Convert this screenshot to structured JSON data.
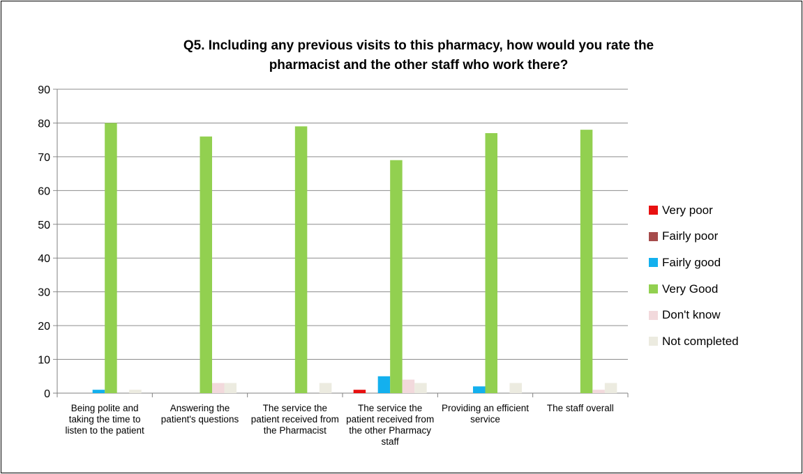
{
  "chart_data": {
    "type": "bar",
    "title": "Q5.  Including any previous visits to this pharmacy, how would you rate the\npharmacist  and the other staff who work there?",
    "categories": [
      "Being polite and taking the time to listen to the patient",
      "Answering the patient's questions",
      "The service the patient received from the Pharmacist",
      "The service the patient received from the other Pharmacy staff",
      "Providing an efficient service",
      "The staff overall"
    ],
    "series": [
      {
        "name": "Very poor",
        "color": "#e81010",
        "values": [
          0,
          0,
          0,
          1,
          0,
          0
        ]
      },
      {
        "name": "Fairly poor",
        "color": "#a64b4b",
        "values": [
          0,
          0,
          0,
          0,
          0,
          0
        ]
      },
      {
        "name": "Fairly good",
        "color": "#13b0ee",
        "values": [
          1,
          0,
          0,
          5,
          2,
          0
        ]
      },
      {
        "name": "Very Good",
        "color": "#92d050",
        "values": [
          80,
          76,
          79,
          69,
          77,
          78
        ]
      },
      {
        "name": "Don't know",
        "color": "#f2d9dc",
        "values": [
          0,
          3,
          0,
          4,
          0,
          1
        ]
      },
      {
        "name": "Not completed",
        "color": "#ecebe0",
        "values": [
          1,
          3,
          3,
          3,
          3,
          3
        ]
      }
    ],
    "ylim": [
      0,
      90
    ],
    "yticks": [
      0,
      10,
      20,
      30,
      40,
      50,
      60,
      70,
      80,
      90
    ],
    "grid": true,
    "legend_position": "right",
    "xlabel": "",
    "ylabel": ""
  }
}
